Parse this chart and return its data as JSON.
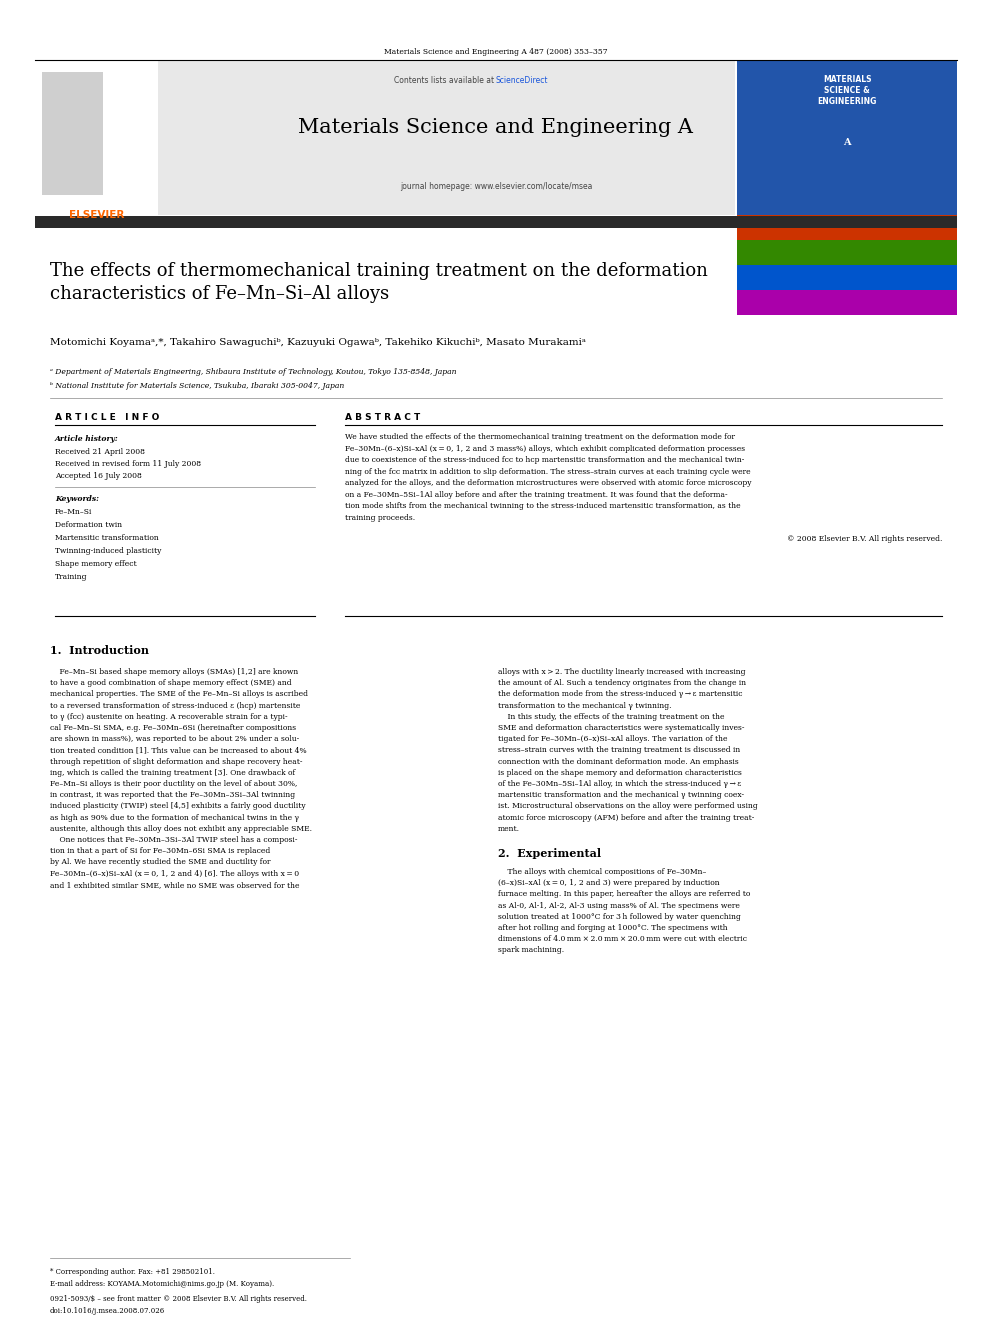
{
  "page_width": 9.92,
  "page_height": 13.23,
  "bg_color": "#ffffff",
  "journal_ref": "Materials Science and Engineering A 487 (2008) 353–357",
  "contents_note": "Contents lists available at ",
  "sciencedirect": "ScienceDirect",
  "journal_title": "Materials Science and Engineering A",
  "journal_homepage": "journal homepage: www.elsevier.com/locate/msea",
  "header_bg": "#e8e8e8",
  "dark_bar_color": "#2a2a2a",
  "article_title": "The effects of thermomechanical training treatment on the deformation\ncharacteristics of Fe–Mn–Si–Al alloys",
  "authors": "Motomichi Koyamaᵃ,*, Takahiro Sawaguchiᵇ, Kazuyuki Ogawaᵇ, Takehiko Kikuchiᵇ, Masato Murakamiᵃ",
  "affil_a": "ᵃ Department of Materials Engineering, Shibaura Institute of Technology, Koutou, Tokyo 135-8548, Japan",
  "affil_b": "ᵇ National Institute for Materials Science, Tsukuba, Ibaraki 305-0047, Japan",
  "article_info_title": "A R T I C L E   I N F O",
  "abstract_title": "A B S T R A C T",
  "article_history_label": "Article history:",
  "received": "Received 21 April 2008",
  "received_revised": "Received in revised form 11 July 2008",
  "accepted": "Accepted 16 July 2008",
  "keywords_label": "Keywords:",
  "keywords": [
    "Fe–Mn–Si",
    "Deformation twin",
    "Martensitic transformation",
    "Twinning-induced plasticity",
    "Shape memory effect",
    "Training"
  ],
  "abstract_lines": [
    "We have studied the effects of the thermomechanical training treatment on the deformation mode for",
    "Fe–30Mn–(6–x)Si–xAl (x = 0, 1, 2 and 3 mass%) alloys, which exhibit complicated deformation processes",
    "due to coexistence of the stress-induced fcc to hcp martensitic transformation and the mechanical twin-",
    "ning of the fcc matrix in addition to slip deformation. The stress–strain curves at each training cycle were",
    "analyzed for the alloys, and the deformation microstructures were observed with atomic force microscopy",
    "on a Fe–30Mn–5Si–1Al alloy before and after the training treatment. It was found that the deforma-",
    "tion mode shifts from the mechanical twinning to the stress-induced martensitic transformation, as the",
    "training proceeds."
  ],
  "copyright": "© 2008 Elsevier B.V. All rights reserved.",
  "section1_title": "1.  Introduction",
  "intro_left_lines": [
    "    Fe–Mn–Si based shape memory alloys (SMAs) [1,2] are known",
    "to have a good combination of shape memory effect (SME) and",
    "mechanical properties. The SME of the Fe–Mn–Si alloys is ascribed",
    "to a reversed transformation of stress-induced ε (hcp) martensite",
    "to γ (fcc) austenite on heating. A recoverable strain for a typi-",
    "cal Fe–Mn–Si SMA, e.g. Fe–30Mn–6Si (hereinafter compositions",
    "are shown in mass%), was reported to be about 2% under a solu-",
    "tion treated condition [1]. This value can be increased to about 4%",
    "through repetition of slight deformation and shape recovery heat-",
    "ing, which is called the training treatment [3]. One drawback of",
    "Fe–Mn–Si alloys is their poor ductility on the level of about 30%,",
    "in contrast, it was reported that the Fe–30Mn–3Si–3Al twinning",
    "induced plasticity (TWIP) steel [4,5] exhibits a fairly good ductility",
    "as high as 90% due to the formation of mechanical twins in the γ",
    "austenite, although this alloy does not exhibit any appreciable SME.",
    "    One notices that Fe–30Mn–3Si–3Al TWIP steel has a composi-",
    "tion in that a part of Si for Fe–30Mn–6Si SMA is replaced",
    "by Al. We have recently studied the SME and ductility for",
    "Fe–30Mn–(6–x)Si–xAl (x = 0, 1, 2 and 4) [6]. The alloys with x = 0",
    "and 1 exhibited similar SME, while no SME was observed for the"
  ],
  "intro_right_lines": [
    "alloys with x > 2. The ductility linearly increased with increasing",
    "the amount of Al. Such a tendency originates from the change in",
    "the deformation mode from the stress-induced γ → ε martensitic",
    "transformation to the mechanical γ twinning.",
    "    In this study, the effects of the training treatment on the",
    "SME and deformation characteristics were systematically inves-",
    "tigated for Fe–30Mn–(6–x)Si–xAl alloys. The variation of the",
    "stress–strain curves with the training treatment is discussed in",
    "connection with the dominant deformation mode. An emphasis",
    "is placed on the shape memory and deformation characteristics",
    "of the Fe–30Mn–5Si–1Al alloy, in which the stress-induced γ → ε",
    "martensitic transformation and the mechanical γ twinning coex-",
    "ist. Microstructural observations on the alloy were performed using",
    "atomic force microscopy (AFM) before and after the training treat-",
    "ment."
  ],
  "section2_title": "2.  Experimental",
  "exp_lines": [
    "    The alloys with chemical compositions of Fe–30Mn–",
    "(6–x)Si–xAl (x = 0, 1, 2 and 3) were prepared by induction",
    "furnace melting. In this paper, hereafter the alloys are referred to",
    "as Al-0, Al-1, Al-2, Al-3 using mass% of Al. The specimens were",
    "solution treated at 1000°C for 3 h followed by water quenching",
    "after hot rolling and forging at 1000°C. The specimens with",
    "dimensions of 4.0 mm × 2.0 mm × 20.0 mm were cut with electric",
    "spark machining."
  ],
  "footer_corr": "* Corresponding author. Fax: +81 298502101.",
  "footer_email": "E-mail address: KOYAMA.Motomichi@nims.go.jp (M. Koyama).",
  "footer_left": "0921-5093/$ – see front matter © 2008 Elsevier B.V. All rights reserved.",
  "footer_doi": "doi:10.1016/j.msea.2008.07.026",
  "elsevier_orange": "#FF6600",
  "sciencedirect_blue": "#1a56db"
}
